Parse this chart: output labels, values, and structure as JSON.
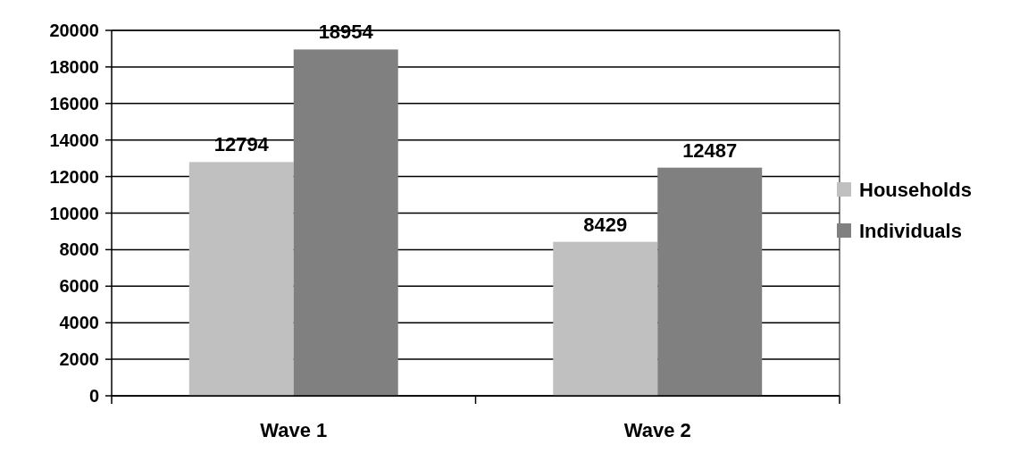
{
  "chart_data": {
    "type": "bar",
    "categories": [
      "Wave 1",
      "Wave 2"
    ],
    "series": [
      {
        "name": "Households",
        "color": "#c0c0c0",
        "values": [
          12794,
          8429
        ]
      },
      {
        "name": "Individuals",
        "color": "#808080",
        "values": [
          18954,
          12487
        ]
      }
    ],
    "ylim": [
      0,
      20000
    ],
    "yticks": [
      0,
      2000,
      4000,
      6000,
      8000,
      10000,
      12000,
      14000,
      16000,
      18000,
      20000
    ],
    "grid": "y",
    "legend": "right",
    "data_labels": true
  }
}
